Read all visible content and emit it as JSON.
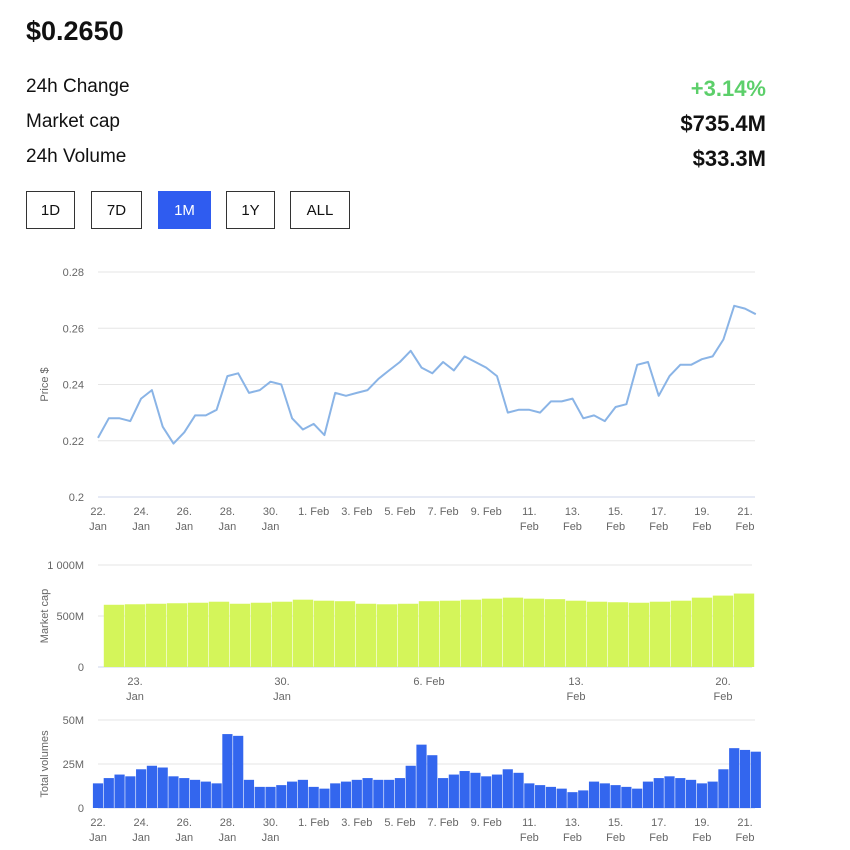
{
  "header": {
    "price": "$0.2650",
    "stats": [
      {
        "label": "24h Change",
        "value": "+3.14%"
      },
      {
        "label": "Market cap",
        "value": "$735.4M"
      },
      {
        "label": "24h Volume",
        "value": "$33.3M"
      }
    ]
  },
  "buttons": [
    "1D",
    "7D",
    "1M",
    "1Y",
    "ALL"
  ],
  "chart_data": [
    {
      "type": "line",
      "y_label": "Price $",
      "color": "#8ab4e6",
      "grid": true,
      "categories": [
        "22. Jan",
        null,
        null,
        null,
        "24. Jan",
        null,
        null,
        null,
        "26. Jan",
        null,
        null,
        null,
        "28. Jan",
        null,
        null,
        null,
        "30. Jan",
        null,
        null,
        null,
        "1. Feb",
        null,
        null,
        null,
        "3. Feb",
        null,
        null,
        null,
        "5. Feb",
        null,
        null,
        null,
        "7. Feb",
        null,
        null,
        null,
        "9. Feb",
        null,
        null,
        null,
        "11. Feb",
        null,
        null,
        null,
        "13. Feb",
        null,
        null,
        null,
        "15. Feb",
        null,
        null,
        null,
        "17. Feb",
        null,
        null,
        null,
        "19. Feb",
        null,
        null,
        null,
        "21. Feb",
        null
      ],
      "values": [
        0.221,
        0.228,
        0.228,
        0.227,
        0.235,
        0.238,
        0.225,
        0.219,
        0.223,
        0.229,
        0.229,
        0.231,
        0.243,
        0.244,
        0.237,
        0.238,
        0.241,
        0.24,
        0.228,
        0.224,
        0.226,
        0.222,
        0.237,
        0.236,
        0.237,
        0.238,
        0.242,
        0.245,
        0.248,
        0.252,
        0.246,
        0.244,
        0.248,
        0.245,
        0.25,
        0.248,
        0.246,
        0.243,
        0.23,
        0.231,
        0.231,
        0.23,
        0.234,
        0.234,
        0.235,
        0.228,
        0.229,
        0.227,
        0.232,
        0.233,
        0.247,
        0.248,
        0.236,
        0.243,
        0.247,
        0.247,
        0.249,
        0.25,
        0.256,
        0.268,
        0.267,
        0.265
      ],
      "ylim": [
        0.2,
        0.28
      ],
      "yticks": [
        0.2,
        0.22,
        0.24,
        0.26,
        0.28
      ]
    },
    {
      "type": "bar",
      "y_label": "Market cap",
      "color": "#d4f55a",
      "grid": true,
      "categories": [
        null,
        "23. Jan",
        null,
        null,
        null,
        null,
        null,
        null,
        "30. Jan",
        null,
        null,
        null,
        null,
        null,
        null,
        "6. Feb",
        null,
        null,
        null,
        null,
        null,
        null,
        "13. Feb",
        null,
        null,
        null,
        null,
        null,
        null,
        "20. Feb",
        null
      ],
      "values": [
        610000000,
        615000000,
        620000000,
        625000000,
        630000000,
        640000000,
        620000000,
        630000000,
        640000000,
        660000000,
        650000000,
        645000000,
        620000000,
        615000000,
        620000000,
        645000000,
        650000000,
        660000000,
        670000000,
        680000000,
        670000000,
        665000000,
        650000000,
        640000000,
        635000000,
        630000000,
        640000000,
        650000000,
        680000000,
        700000000,
        720000000
      ],
      "ylim": [
        0,
        1000000000
      ],
      "yticks": [
        0,
        {
          "value": 500000000,
          "label": "500M"
        },
        {
          "value": 1000000000,
          "label": "1 000M"
        }
      ]
    },
    {
      "type": "bar",
      "y_label": "Total volumes",
      "color": "#3366ee",
      "grid": true,
      "categories": [
        "22. Jan",
        null,
        null,
        null,
        "24. Jan",
        null,
        null,
        null,
        "26. Jan",
        null,
        null,
        null,
        "28. Jan",
        null,
        null,
        null,
        "30. Jan",
        null,
        null,
        null,
        "1. Feb",
        null,
        null,
        null,
        "3. Feb",
        null,
        null,
        null,
        "5. Feb",
        null,
        null,
        null,
        "7. Feb",
        null,
        null,
        null,
        "9. Feb",
        null,
        null,
        null,
        "11. Feb",
        null,
        null,
        null,
        "13. Feb",
        null,
        null,
        null,
        "15. Feb",
        null,
        null,
        null,
        "17. Feb",
        null,
        null,
        null,
        "19. Feb",
        null,
        null,
        null,
        "21. Feb",
        null
      ],
      "values": [
        14000000,
        17000000,
        19000000,
        18000000,
        22000000,
        24000000,
        23000000,
        18000000,
        17000000,
        16000000,
        15000000,
        14000000,
        42000000,
        41000000,
        16000000,
        12000000,
        12000000,
        13000000,
        15000000,
        16000000,
        12000000,
        11000000,
        14000000,
        15000000,
        16000000,
        17000000,
        16000000,
        16000000,
        17000000,
        24000000,
        36000000,
        30000000,
        17000000,
        19000000,
        21000000,
        20000000,
        18000000,
        19000000,
        22000000,
        20000000,
        14000000,
        13000000,
        12000000,
        11000000,
        9000000,
        10000000,
        15000000,
        14000000,
        13000000,
        12000000,
        11000000,
        15000000,
        17000000,
        18000000,
        17000000,
        16000000,
        14000000,
        15000000,
        22000000,
        34000000,
        33000000,
        32000000
      ],
      "ylim": [
        0,
        50000000
      ],
      "yticks": [
        0,
        {
          "value": 25000000,
          "label": "25M"
        },
        {
          "value": 50000000,
          "label": "50M"
        }
      ]
    }
  ]
}
